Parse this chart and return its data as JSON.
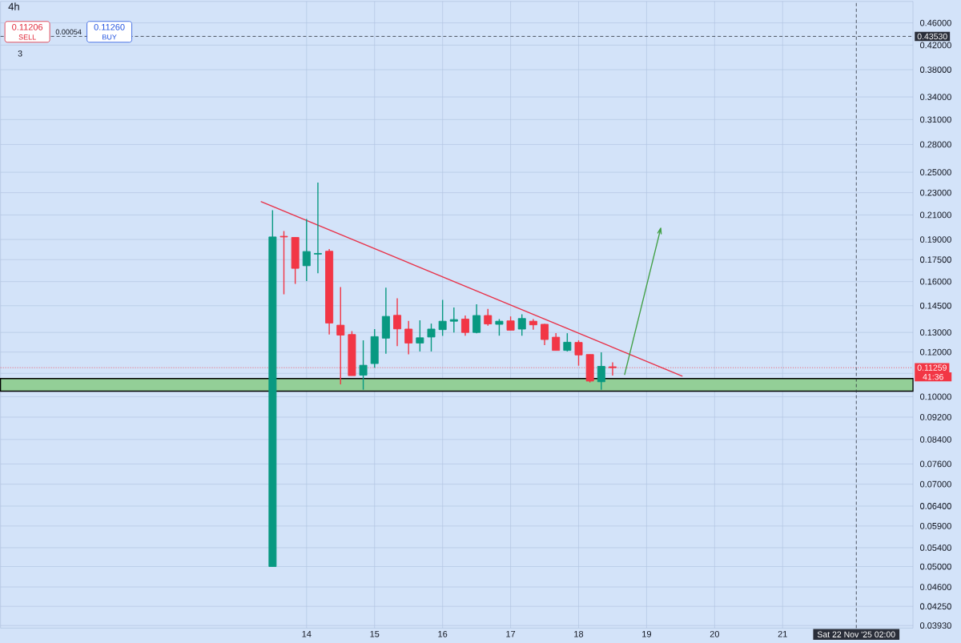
{
  "chart_data": {
    "type": "candlestick",
    "title": "4h",
    "x": [
      "2025-11-13T12:00",
      "2025-11-13T16:00",
      "2025-11-13T20:00",
      "2025-11-14T00:00",
      "2025-11-14T04:00",
      "2025-11-14T08:00",
      "2025-11-14T12:00",
      "2025-11-14T16:00",
      "2025-11-14T20:00",
      "2025-11-15T00:00",
      "2025-11-15T04:00",
      "2025-11-15T08:00",
      "2025-11-15T12:00",
      "2025-11-15T16:00",
      "2025-11-15T20:00",
      "2025-11-16T00:00",
      "2025-11-16T04:00",
      "2025-11-16T08:00",
      "2025-11-16T12:00",
      "2025-11-16T16:00",
      "2025-11-16T20:00",
      "2025-11-17T00:00",
      "2025-11-17T04:00",
      "2025-11-17T08:00",
      "2025-11-17T12:00",
      "2025-11-17T16:00",
      "2025-11-17T20:00",
      "2025-11-18T00:00",
      "2025-11-18T04:00",
      "2025-11-18T08:00",
      "2025-11-18T12:00"
    ],
    "ohlc": [
      [
        0.05,
        0.2141,
        0.05,
        0.192
      ],
      [
        0.1925,
        0.1967,
        0.1519,
        0.192
      ],
      [
        0.1916,
        0.1916,
        0.1585,
        0.1689
      ],
      [
        0.1707,
        0.2066,
        0.1604,
        0.1809
      ],
      [
        0.179,
        0.2397,
        0.1656,
        0.1795
      ],
      [
        0.1811,
        0.1827,
        0.1289,
        0.1351
      ],
      [
        0.1339,
        0.1565,
        0.1052,
        0.1286
      ],
      [
        0.1289,
        0.1307,
        0.109,
        0.109
      ],
      [
        0.1092,
        0.1259,
        0.1029,
        0.1137
      ],
      [
        0.1145,
        0.1318,
        0.1126,
        0.1278
      ],
      [
        0.127,
        0.1561,
        0.1192,
        0.1388
      ],
      [
        0.1394,
        0.1495,
        0.1229,
        0.1319
      ],
      [
        0.1318,
        0.1363,
        0.1189,
        0.1245
      ],
      [
        0.1245,
        0.1366,
        0.1203,
        0.1272
      ],
      [
        0.1276,
        0.1348,
        0.1203,
        0.1318
      ],
      [
        0.1315,
        0.1485,
        0.1282,
        0.1361
      ],
      [
        0.1361,
        0.1439,
        0.13,
        0.137
      ],
      [
        0.1373,
        0.1393,
        0.1283,
        0.13
      ],
      [
        0.13,
        0.1458,
        0.1295,
        0.1393
      ],
      [
        0.1393,
        0.1431,
        0.1336,
        0.1346
      ],
      [
        0.1344,
        0.1373,
        0.1283,
        0.1361
      ],
      [
        0.1363,
        0.1388,
        0.1312,
        0.1312
      ],
      [
        0.1318,
        0.14,
        0.1283,
        0.1376
      ],
      [
        0.1361,
        0.1373,
        0.1315,
        0.1341
      ],
      [
        0.1344,
        0.1346,
        0.1234,
        0.1263
      ],
      [
        0.1275,
        0.1296,
        0.1208,
        0.1208
      ],
      [
        0.1208,
        0.1296,
        0.1203,
        0.1249
      ],
      [
        0.1248,
        0.1259,
        0.1135,
        0.1186
      ],
      [
        0.1188,
        0.1188,
        0.106,
        0.1066
      ],
      [
        0.1063,
        0.1199,
        0.1029,
        0.1132
      ],
      [
        0.113,
        0.1151,
        0.109,
        0.11259
      ]
    ],
    "colors": [
      "#089981",
      "#f23645",
      "#f23645",
      "#089981",
      "#089981",
      "#f23645",
      "#f23645",
      "#f23645",
      "#089981",
      "#089981",
      "#089981",
      "#f23645",
      "#f23645",
      "#089981",
      "#089981",
      "#089981",
      "#089981",
      "#f23645",
      "#089981",
      "#f23645",
      "#089981",
      "#f23645",
      "#089981",
      "#f23645",
      "#f23645",
      "#f23645",
      "#089981",
      "#f23645",
      "#f23645",
      "#089981",
      "#f23645"
    ],
    "series": [
      {
        "type": "line",
        "color": "#e8334a",
        "x": [
          "2025-11-13T08:00",
          "2025-11-19T12:30"
        ],
        "values": [
          0.2217,
          0.1088
        ]
      },
      {
        "type": "line",
        "color": "#43a047",
        "x": [
          "2025-11-18T16:15",
          "2025-11-19T05:00"
        ],
        "values": [
          0.1095,
          0.199
        ]
      }
    ],
    "bands": [
      {
        "axis": "y",
        "from": 0.1023,
        "to": 0.1077,
        "color": "#93cf97"
      }
    ],
    "xlim": [
      "2025-11-09T12:00",
      "2025-11-22T22:00"
    ],
    "xticks": [
      {
        "value": "2025-11-14",
        "label": "14"
      },
      {
        "value": "2025-11-15",
        "label": "15"
      },
      {
        "value": "2025-11-16",
        "label": "16"
      },
      {
        "value": "2025-11-17",
        "label": "17"
      },
      {
        "value": "2025-11-18",
        "label": "18"
      },
      {
        "value": "2025-11-19",
        "label": "19"
      },
      {
        "value": "2025-11-20",
        "label": "20"
      },
      {
        "value": "2025-11-21",
        "label": "21"
      }
    ],
    "ylim": [
      0.0389,
      0.502
    ],
    "yticks": [
      {
        "value": 0.0393,
        "label": "0.03930"
      },
      {
        "value": 0.0425,
        "label": "0.04250"
      },
      {
        "value": 0.046,
        "label": "0.04600"
      },
      {
        "value": 0.05,
        "label": "0.05000"
      },
      {
        "value": 0.054,
        "label": "0.05400"
      },
      {
        "value": 0.059,
        "label": "0.05900"
      },
      {
        "value": 0.064,
        "label": "0.06400"
      },
      {
        "value": 0.07,
        "label": "0.07000"
      },
      {
        "value": 0.076,
        "label": "0.07600"
      },
      {
        "value": 0.084,
        "label": "0.08400"
      },
      {
        "value": 0.092,
        "label": "0.09200"
      },
      {
        "value": 0.1,
        "label": "0.10000"
      },
      {
        "value": 0.11,
        "label": null
      },
      {
        "value": 0.12,
        "label": "0.12000"
      },
      {
        "value": 0.13,
        "label": "0.13000"
      },
      {
        "value": 0.145,
        "label": "0.14500"
      },
      {
        "value": 0.16,
        "label": "0.16000"
      },
      {
        "value": 0.175,
        "label": "0.17500"
      },
      {
        "value": 0.19,
        "label": "0.19000"
      },
      {
        "value": 0.21,
        "label": "0.21000"
      },
      {
        "value": 0.23,
        "label": "0.23000"
      },
      {
        "value": 0.25,
        "label": "0.25000"
      },
      {
        "value": 0.28,
        "label": "0.28000"
      },
      {
        "value": 0.31,
        "label": "0.31000"
      },
      {
        "value": 0.34,
        "label": "0.34000"
      },
      {
        "value": 0.38,
        "label": "0.38000"
      },
      {
        "value": 0.42,
        "label": "0.42000"
      },
      {
        "value": 0.46,
        "label": "0.46000"
      }
    ],
    "log": true,
    "grid": true,
    "ref_lines": [
      {
        "axis": "y",
        "value": 0.11259,
        "label": "0.11259",
        "color": "#f23645",
        "line_style": "dotted"
      },
      {
        "axis": "y",
        "value": 0.4353,
        "label": "0.43530",
        "color": "#2a2e39",
        "line_style": "dashed"
      },
      {
        "axis": "x",
        "value": "2025-11-22T02:00",
        "label": "Sat 22 Nov '25 02:00",
        "color": "#2a2e39",
        "line_style": "dashed"
      }
    ],
    "annotations": [
      "0.11206",
      "SELL",
      "0.00054",
      "0.11260",
      "BUY",
      "3",
      "41:36"
    ]
  }
}
